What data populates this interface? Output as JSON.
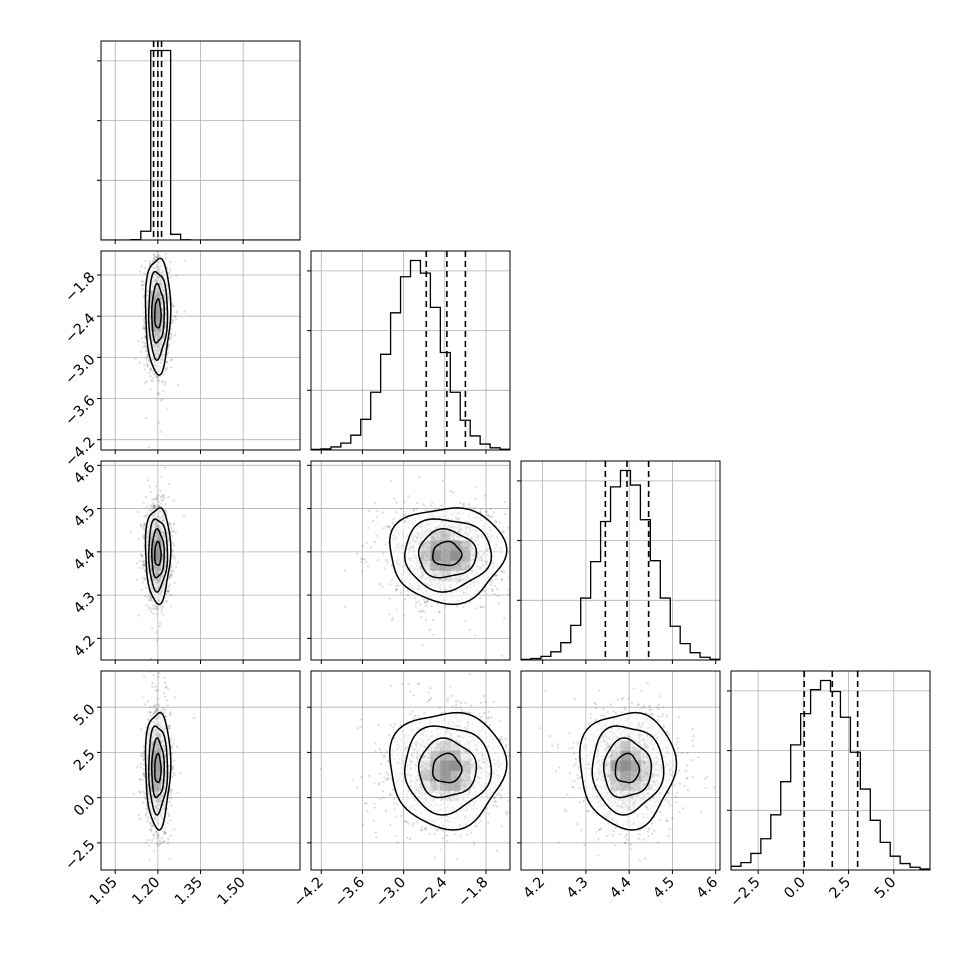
{
  "chart_data": {
    "type": "corner",
    "grid": true,
    "parameters": [
      {
        "id": "p0",
        "range": [
          1.0,
          1.7
        ],
        "ticks": [
          1.05,
          1.2,
          1.35,
          1.5
        ],
        "tick_labels": [
          "1.05",
          "1.20",
          "1.35",
          "1.50"
        ],
        "mean": 1.2,
        "sd": 0.022,
        "quantiles": [
          1.185,
          1.2,
          1.213
        ]
      },
      {
        "id": "p1",
        "range": [
          -4.35,
          -1.45
        ],
        "ticks": [
          -4.2,
          -3.6,
          -3.0,
          -2.4,
          -1.8
        ],
        "tick_labels": [
          "−4.2",
          "−3.6",
          "−3.0",
          "−2.4",
          "−1.8"
        ],
        "mean": -2.37,
        "sd": 0.42,
        "quantiles": [
          -2.67,
          -2.37,
          -2.1
        ]
      },
      {
        "id": "p2",
        "range": [
          4.15,
          4.61
        ],
        "ticks": [
          4.2,
          4.3,
          4.4,
          4.5,
          4.6
        ],
        "tick_labels": [
          "4.2",
          "4.3",
          "4.4",
          "4.5",
          "4.6"
        ],
        "mean": 4.395,
        "sd": 0.055,
        "quantiles": [
          4.345,
          4.395,
          4.445
        ]
      },
      {
        "id": "p3",
        "range": [
          -4.0,
          7.0
        ],
        "ticks": [
          -2.5,
          0.0,
          2.5,
          5.0
        ],
        "tick_labels": [
          "−2.5",
          "0.0",
          "2.5",
          "5.0"
        ],
        "mean": 1.6,
        "sd": 1.6,
        "quantiles": [
          0.05,
          1.6,
          3.0
        ]
      }
    ],
    "histograms": [
      {
        "param": "p0",
        "bin_edges": [
          1.0,
          1.035,
          1.07,
          1.105,
          1.14,
          1.175,
          1.21,
          1.245,
          1.28,
          1.315,
          1.35,
          1.385,
          1.42,
          1.455,
          1.49,
          1.525,
          1.56,
          1.595,
          1.63,
          1.665,
          1.7
        ],
        "counts": [
          0,
          0,
          0,
          2,
          46,
          1000,
          1000,
          30,
          1,
          0,
          0,
          0,
          0,
          0,
          0,
          0,
          0,
          0,
          0,
          0
        ]
      },
      {
        "param": "p1",
        "bin_edges": [
          -4.35,
          -4.205,
          -4.06,
          -3.915,
          -3.77,
          -3.625,
          -3.48,
          -3.335,
          -3.19,
          -3.045,
          -2.9,
          -2.755,
          -2.61,
          -2.465,
          -2.32,
          -2.175,
          -2.03,
          -1.885,
          -1.74,
          -1.595,
          -1.45
        ],
        "counts": [
          3,
          6,
          17,
          38,
          82,
          170,
          320,
          530,
          760,
          960,
          1050,
          980,
          790,
          540,
          320,
          165,
          78,
          33,
          12,
          4
        ]
      },
      {
        "param": "p2",
        "bin_edges": [
          4.15,
          4.173,
          4.196,
          4.219,
          4.242,
          4.265,
          4.288,
          4.311,
          4.334,
          4.357,
          4.38,
          4.403,
          4.426,
          4.449,
          4.472,
          4.495,
          4.518,
          4.541,
          4.564,
          4.587,
          4.61
        ],
        "counts": [
          3,
          8,
          20,
          45,
          95,
          190,
          340,
          540,
          760,
          950,
          1040,
          960,
          770,
          545,
          340,
          185,
          90,
          40,
          15,
          4
        ]
      },
      {
        "param": "p3",
        "bin_edges": [
          -4.0,
          -3.45,
          -2.9,
          -2.35,
          -1.8,
          -1.25,
          -0.7,
          -0.15,
          0.4,
          0.95,
          1.5,
          2.05,
          2.6,
          3.15,
          3.7,
          4.25,
          4.8,
          5.35,
          5.9,
          6.45,
          7.0
        ],
        "counts": [
          20,
          40,
          90,
          170,
          300,
          480,
          680,
          850,
          980,
          1030,
          970,
          830,
          640,
          440,
          270,
          150,
          75,
          35,
          15,
          5
        ]
      }
    ],
    "pairs": [
      {
        "x": "p0",
        "y": "p1",
        "rho": 0.0
      },
      {
        "x": "p0",
        "y": "p2",
        "rho": 0.0
      },
      {
        "x": "p1",
        "y": "p2",
        "rho": 0.0
      },
      {
        "x": "p0",
        "y": "p3",
        "rho": 0.0
      },
      {
        "x": "p1",
        "y": "p3",
        "rho": 0.0
      },
      {
        "x": "p2",
        "y": "p3",
        "rho": 0.0
      }
    ],
    "contour_levels_sigma": [
      0.5,
      1.0,
      1.5,
      2.0
    ],
    "colors": {
      "line": "#000000",
      "grid": "#b0b0b0",
      "points": "#000000",
      "density": "#000000"
    }
  }
}
